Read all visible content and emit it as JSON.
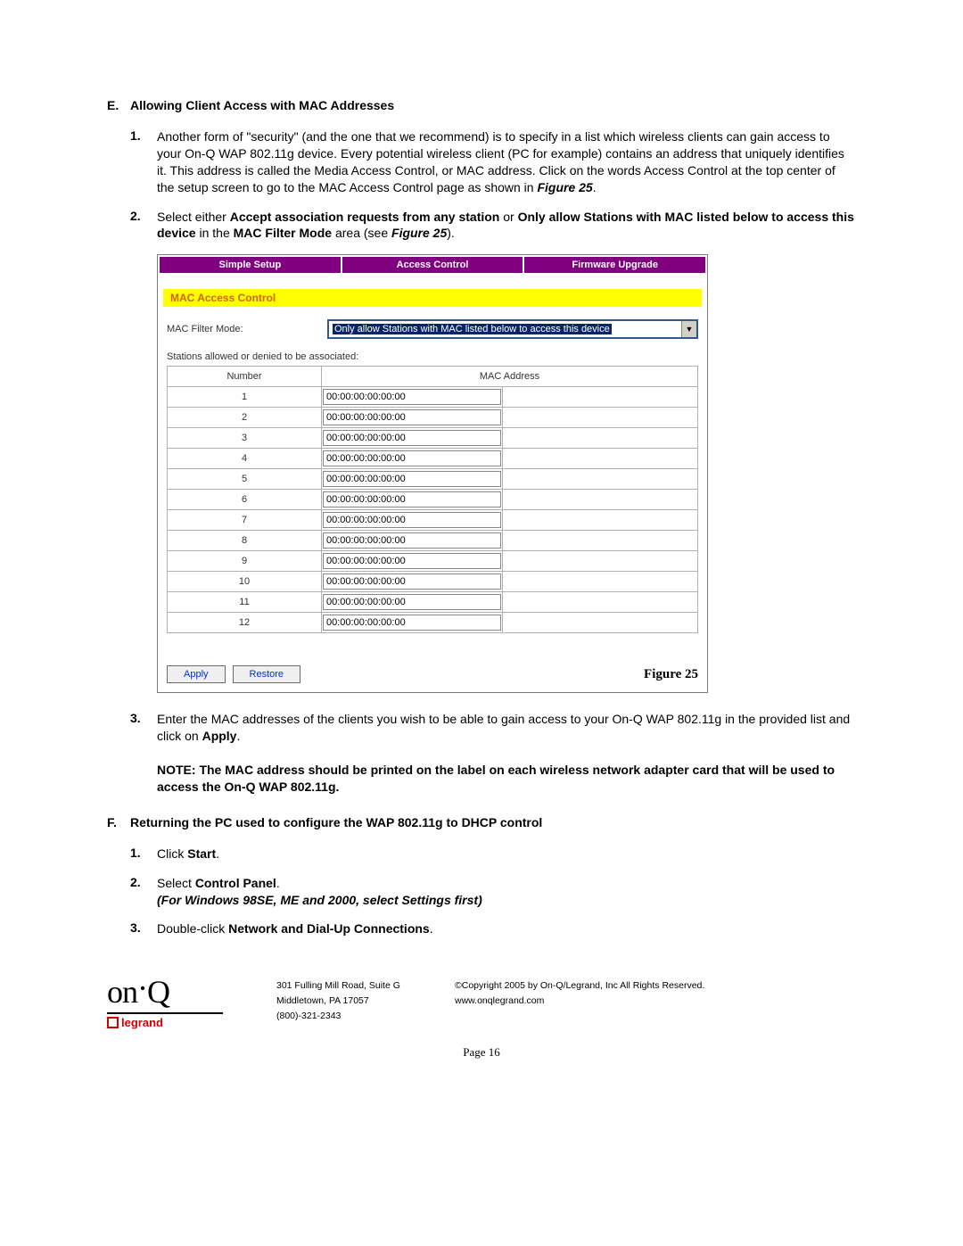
{
  "sectionE": {
    "letter": "E.",
    "title": "Allowing Client Access with MAC Addresses",
    "item1_num": "1.",
    "item1_pre": "Another form of \"security\" (and the one that we recommend) is to specify in a list which wireless clients can gain access to your On-Q WAP 802.11g device. Every potential wireless client (PC for example) contains an address that uniquely identifies it. This address is called the Media Access Control, or MAC address. Click on the words Access Control at the top center of the setup screen to go to the MAC Access Control page as shown in ",
    "item1_fig": "Figure 25",
    "item1_post": ".",
    "item2_num": "2.",
    "item2_a": "Select either ",
    "item2_b": "Accept association requests from any station",
    "item2_c": " or ",
    "item2_d": "Only allow Stations with MAC listed below to access this device",
    "item2_e": " in the ",
    "item2_f": "MAC Filter Mode",
    "item2_g": " area (see ",
    "item2_h": "Figure 25",
    "item2_i": ").",
    "item3_num": "3.",
    "item3_a": "Enter the MAC addresses of the clients you wish to be able to gain access to your On-Q WAP 802.11g in the provided list and click on ",
    "item3_b": "Apply",
    "item3_c": ".",
    "note": "NOTE: The MAC address should be printed on the label on each wireless network adapter card that will be used to access the On-Q WAP 802.11g."
  },
  "figure": {
    "tab1": "Simple Setup",
    "tab2": "Access Control",
    "tab3": "Firmware Upgrade",
    "yellow_title": "MAC Access Control",
    "mode_label": "MAC Filter Mode:",
    "mode_value": "Only allow Stations with MAC listed below to access this device",
    "stations_label": "Stations allowed or denied to be associated:",
    "col_number": "Number",
    "col_mac": "MAC Address",
    "rows": [
      {
        "n": "1",
        "v": "00:00:00:00:00:00"
      },
      {
        "n": "2",
        "v": "00:00:00:00:00:00"
      },
      {
        "n": "3",
        "v": "00:00:00:00:00:00"
      },
      {
        "n": "4",
        "v": "00:00:00:00:00:00"
      },
      {
        "n": "5",
        "v": "00:00:00:00:00:00"
      },
      {
        "n": "6",
        "v": "00:00:00:00:00:00"
      },
      {
        "n": "7",
        "v": "00:00:00:00:00:00"
      },
      {
        "n": "8",
        "v": "00:00:00:00:00:00"
      },
      {
        "n": "9",
        "v": "00:00:00:00:00:00"
      },
      {
        "n": "10",
        "v": "00:00:00:00:00:00"
      },
      {
        "n": "11",
        "v": "00:00:00:00:00:00"
      },
      {
        "n": "12",
        "v": "00:00:00:00:00:00"
      }
    ],
    "apply_btn": "Apply",
    "restore_btn": "Restore",
    "caption": "Figure 25"
  },
  "sectionF": {
    "letter": "F.",
    "title": "Returning the PC used to configure the WAP 802.11g to DHCP control",
    "i1_num": "1.",
    "i1_a": "Click ",
    "i1_b": "Start",
    "i1_c": ".",
    "i2_num": "2.",
    "i2_a": "Select ",
    "i2_b": "Control Panel",
    "i2_c": ".",
    "i2_note": "(For Windows 98SE, ME and 2000, select Settings first)",
    "i3_num": "3.",
    "i3_a": "Double-click ",
    "i3_b": "Network and Dial-Up Connections",
    "i3_c": "."
  },
  "footer": {
    "addr1": "301 Fulling Mill Road, Suite G",
    "addr2": "Middletown, PA   17057",
    "addr3": "(800)-321-2343",
    "copy": "©Copyright 2005 by On-Q/Legrand, Inc All Rights Reserved.",
    "url": "www.onqlegrand.com",
    "page": "Page 16",
    "legrand": "legrand"
  }
}
